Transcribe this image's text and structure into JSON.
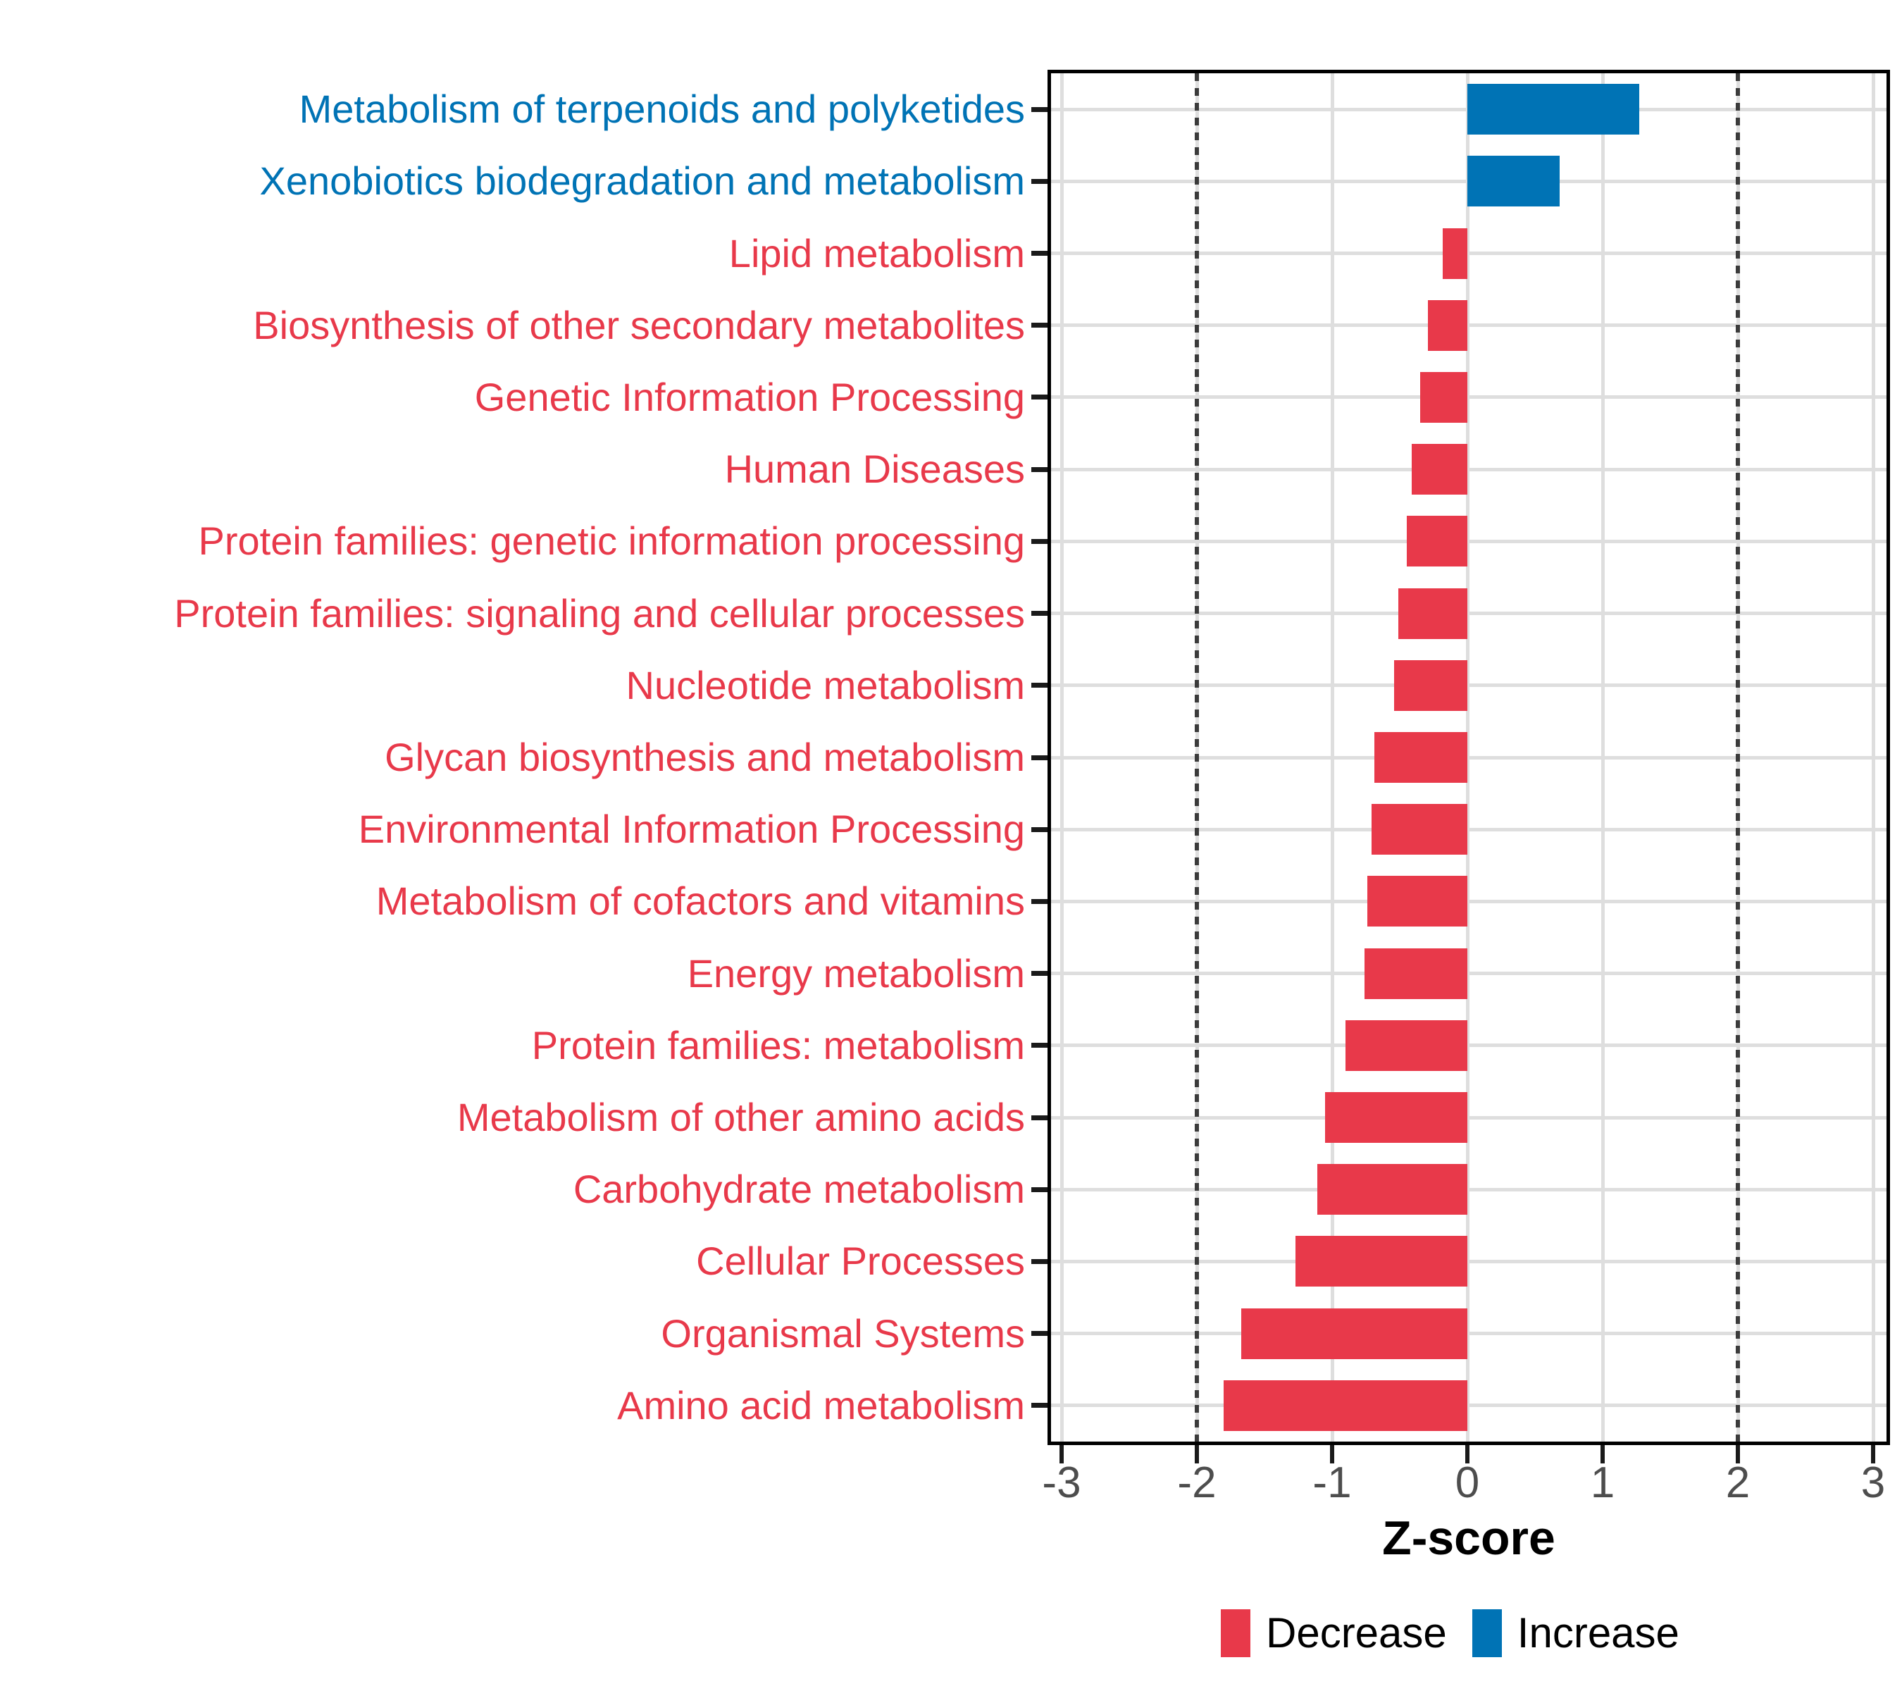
{
  "chart_data": {
    "type": "bar",
    "orientation": "horizontal",
    "title": "",
    "xlabel": "Z-score",
    "ylabel": "",
    "xlim": [
      -3.08,
      3.1
    ],
    "x_ticks": [
      -3,
      -2,
      -1,
      0,
      1,
      2,
      3
    ],
    "guide_lines": [
      -2,
      2
    ],
    "grid": true,
    "legend_position": "bottom",
    "bars": [
      {
        "label": "Metabolism of terpenoids and polyketides",
        "value": 1.27,
        "group": "Increase"
      },
      {
        "label": "Xenobiotics biodegradation and metabolism",
        "value": 0.68,
        "group": "Increase"
      },
      {
        "label": "Lipid metabolism",
        "value": -0.18,
        "group": "Decrease"
      },
      {
        "label": "Biosynthesis of other secondary metabolites",
        "value": -0.29,
        "group": "Decrease"
      },
      {
        "label": "Genetic Information Processing",
        "value": -0.35,
        "group": "Decrease"
      },
      {
        "label": "Human Diseases",
        "value": -0.41,
        "group": "Decrease"
      },
      {
        "label": "Protein families: genetic information processing",
        "value": -0.45,
        "group": "Decrease"
      },
      {
        "label": "Protein families: signaling and cellular processes",
        "value": -0.51,
        "group": "Decrease"
      },
      {
        "label": "Nucleotide metabolism",
        "value": -0.54,
        "group": "Decrease"
      },
      {
        "label": "Glycan biosynthesis and metabolism",
        "value": -0.69,
        "group": "Decrease"
      },
      {
        "label": "Environmental Information Processing",
        "value": -0.71,
        "group": "Decrease"
      },
      {
        "label": "Metabolism of cofactors and vitamins",
        "value": -0.74,
        "group": "Decrease"
      },
      {
        "label": "Energy metabolism",
        "value": -0.76,
        "group": "Decrease"
      },
      {
        "label": "Protein families: metabolism",
        "value": -0.9,
        "group": "Decrease"
      },
      {
        "label": "Metabolism of other amino acids",
        "value": -1.05,
        "group": "Decrease"
      },
      {
        "label": "Carbohydrate metabolism",
        "value": -1.11,
        "group": "Decrease"
      },
      {
        "label": "Cellular Processes",
        "value": -1.27,
        "group": "Decrease"
      },
      {
        "label": "Organismal Systems",
        "value": -1.67,
        "group": "Decrease"
      },
      {
        "label": "Amino acid metabolism",
        "value": -1.8,
        "group": "Decrease"
      }
    ],
    "legend": [
      {
        "label": "Decrease",
        "color": "#E8394A"
      },
      {
        "label": "Increase",
        "color": "#0073B5"
      }
    ]
  },
  "colors": {
    "decrease": "#E8394A",
    "increase": "#0073B5",
    "grid": "#DEDEDE",
    "guide": "#3B3B3B",
    "tick_label": "#4D4D4D",
    "axis_title": "#000000"
  }
}
